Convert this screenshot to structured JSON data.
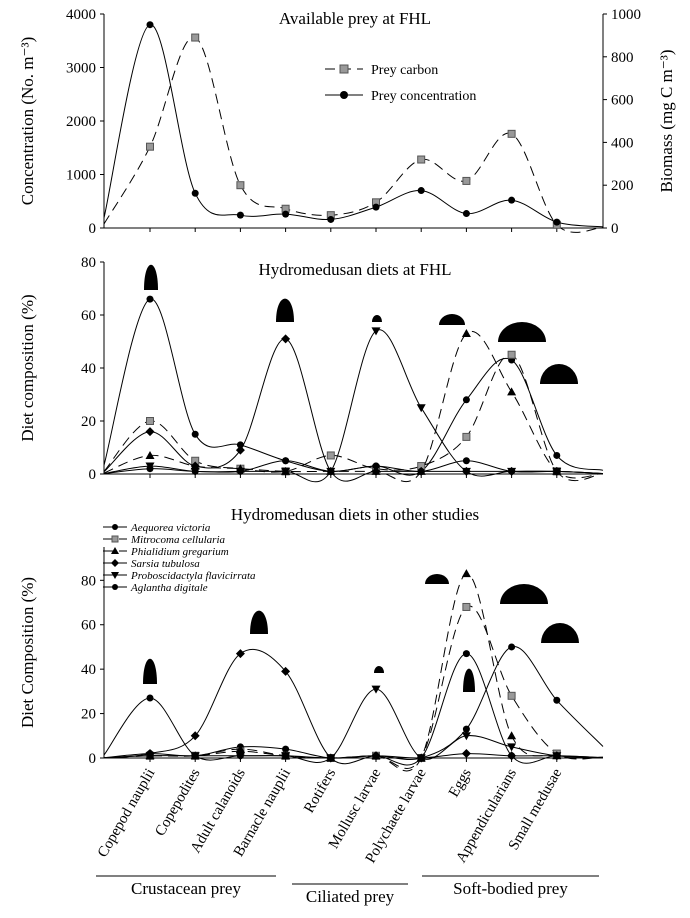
{
  "categories": [
    "Copepod nauplii",
    "Copepodites",
    "Adult calanoids",
    "Barnacle nauplii",
    "Rotifers",
    "Mollusc larvae",
    "Polychaete larvae",
    "Eggs",
    "Appendicularians",
    "Small medusae"
  ],
  "groups": [
    {
      "label": "Crustacean prey",
      "from": 0,
      "to": 3
    },
    {
      "label": "Ciliated prey",
      "from": 4,
      "to": 6
    },
    {
      "label": "Soft-bodied prey",
      "from": 7,
      "to": 9
    }
  ],
  "chart_data": [
    {
      "type": "line",
      "title": "Available prey at FHL",
      "ylabel": "Concentration (No. m⁻³)",
      "y2label": "Biomass (mg C m⁻³)",
      "ylim": [
        0,
        4000
      ],
      "y2lim": [
        0,
        1000
      ],
      "yticks": [
        0,
        1000,
        2000,
        3000,
        4000
      ],
      "y2ticks": [
        0,
        200,
        400,
        600,
        800,
        1000
      ],
      "legend_position": "top-center",
      "series": [
        {
          "name": "Prey carbon",
          "axis": "right",
          "marker": "square",
          "dashed": true,
          "values": [
            380,
            890,
            200,
            90,
            60,
            120,
            320,
            220,
            440,
            15
          ]
        },
        {
          "name": "Prey concentration",
          "axis": "left",
          "marker": "circle",
          "dashed": false,
          "values": [
            3800,
            650,
            240,
            260,
            160,
            390,
            700,
            270,
            520,
            110
          ]
        }
      ]
    },
    {
      "type": "line",
      "title": "Hydromedusan diets at FHL",
      "ylabel": "Diet composition (%)",
      "ylim": [
        0,
        80
      ],
      "yticks": [
        0,
        20,
        40,
        60,
        80
      ],
      "series": [
        {
          "marker": "circle",
          "dashed": false,
          "values": [
            66,
            15,
            11,
            5,
            1,
            3,
            1,
            28,
            43,
            7
          ]
        },
        {
          "marker": "square",
          "dashed": true,
          "values": [
            20,
            5,
            2,
            1,
            7,
            2,
            3,
            14,
            45,
            1
          ]
        },
        {
          "marker": "triangle-up",
          "dashed": true,
          "values": [
            7,
            3,
            2,
            1,
            1,
            1,
            1,
            53,
            31,
            1
          ]
        },
        {
          "marker": "diamond",
          "dashed": false,
          "values": [
            16,
            3,
            9,
            51,
            1,
            1,
            1,
            1,
            1,
            1
          ]
        },
        {
          "marker": "triangle-down",
          "dashed": false,
          "values": [
            3,
            1,
            1,
            1,
            1,
            54,
            25,
            1,
            1,
            1
          ]
        },
        {
          "marker": "circle",
          "dashed": false,
          "values": [
            2,
            1,
            1,
            5,
            1,
            3,
            1,
            5,
            1,
            1
          ]
        }
      ]
    },
    {
      "type": "line",
      "title": "Hydromedusan diets in other studies",
      "ylabel": "Diet Composition (%)",
      "ylim": [
        0,
        95
      ],
      "yticks": [
        0,
        20,
        40,
        60,
        80
      ],
      "legend_position": "top-left",
      "series": [
        {
          "name": "Aequorea victoria",
          "marker": "circle",
          "dashed": false,
          "values": [
            2,
            1,
            5,
            4,
            0,
            1,
            0,
            13,
            50,
            26
          ]
        },
        {
          "name": "Mitrocoma cellularia",
          "marker": "square",
          "dashed": true,
          "values": [
            1,
            1,
            3,
            1,
            0,
            1,
            0,
            68,
            28,
            2
          ]
        },
        {
          "name": "Phialidium gregarium",
          "marker": "triangle-up",
          "dashed": true,
          "values": [
            1,
            1,
            4,
            1,
            0,
            1,
            0,
            83,
            10,
            1
          ]
        },
        {
          "name": "Sarsia tubulosa",
          "marker": "diamond",
          "dashed": false,
          "values": [
            2,
            10,
            47,
            39,
            0,
            1,
            0,
            2,
            1,
            1
          ]
        },
        {
          "name": "Proboscidactyla flavicirrata",
          "marker": "triangle-down",
          "dashed": false,
          "values": [
            1,
            1,
            1,
            1,
            0,
            31,
            0,
            10,
            5,
            1
          ]
        },
        {
          "name": "Aglantha digitale",
          "marker": "circle",
          "dashed": false,
          "values": [
            27,
            1,
            1,
            1,
            0,
            1,
            0,
            47,
            1,
            1
          ]
        }
      ]
    }
  ]
}
